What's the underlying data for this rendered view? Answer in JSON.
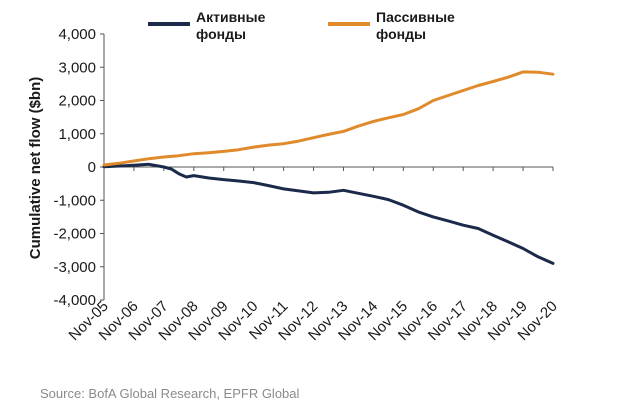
{
  "chart_data": {
    "type": "line",
    "ylabel": "Cumulative net flow ($bn)",
    "ylim": [
      -4000,
      4000
    ],
    "yticks": [
      -4000,
      -3000,
      -2000,
      -1000,
      0,
      1000,
      2000,
      3000,
      4000
    ],
    "ytick_labels": [
      "-4,000",
      "-3,000",
      "-2,000",
      "-1,000",
      "0",
      "1,000",
      "2,000",
      "3,000",
      "4,000"
    ],
    "x_labels": [
      "Nov-05",
      "Nov-06",
      "Nov-07",
      "Nov-08",
      "Nov-09",
      "Nov-10",
      "Nov-11",
      "Nov-12",
      "Nov-13",
      "Nov-14",
      "Nov-15",
      "Nov-16",
      "Nov-17",
      "Nov-18",
      "Nov-19",
      "Nov-20"
    ],
    "xlim": [
      2005.83,
      2020.83
    ],
    "legend_position": "top",
    "grid": false,
    "series": [
      {
        "name": "Активные фонды",
        "color": "#1b2a4a",
        "x": [
          2005.83,
          2006.33,
          2006.83,
          2007.33,
          2007.83,
          2008.08,
          2008.33,
          2008.58,
          2008.83,
          2009.33,
          2009.83,
          2010.33,
          2010.83,
          2011.33,
          2011.83,
          2012.33,
          2012.83,
          2013.33,
          2013.83,
          2014.33,
          2014.83,
          2015.33,
          2015.83,
          2016.33,
          2016.83,
          2017.33,
          2017.83,
          2018.33,
          2018.83,
          2019.33,
          2019.83,
          2020.33,
          2020.83
        ],
        "y": [
          10,
          30,
          50,
          80,
          0,
          -60,
          -200,
          -300,
          -260,
          -330,
          -380,
          -420,
          -470,
          -560,
          -660,
          -720,
          -780,
          -760,
          -700,
          -790,
          -880,
          -980,
          -1150,
          -1350,
          -1500,
          -1620,
          -1750,
          -1850,
          -2050,
          -2250,
          -2450,
          -2700,
          -2900
        ]
      },
      {
        "name": "Пассивные фонды",
        "color": "#e08a2c",
        "x": [
          2005.83,
          2006.33,
          2006.83,
          2007.33,
          2007.83,
          2008.33,
          2008.83,
          2009.33,
          2009.83,
          2010.33,
          2010.83,
          2011.33,
          2011.83,
          2012.33,
          2012.83,
          2013.33,
          2013.83,
          2014.33,
          2014.83,
          2015.33,
          2015.83,
          2016.33,
          2016.83,
          2017.33,
          2017.83,
          2018.33,
          2018.83,
          2019.33,
          2019.83,
          2020.33,
          2020.83
        ],
        "y": [
          60,
          110,
          180,
          250,
          300,
          340,
          400,
          430,
          470,
          520,
          600,
          660,
          700,
          780,
          880,
          980,
          1070,
          1230,
          1370,
          1480,
          1580,
          1750,
          2000,
          2150,
          2300,
          2450,
          2570,
          2700,
          2860,
          2850,
          2790
        ]
      }
    ],
    "source": "Source: BofA Global Research, EPFR Global"
  },
  "legend": {
    "active_line1": "Активные",
    "active_line2": "фонды",
    "passive_line1": "Пассивные",
    "passive_line2": "фонды"
  }
}
